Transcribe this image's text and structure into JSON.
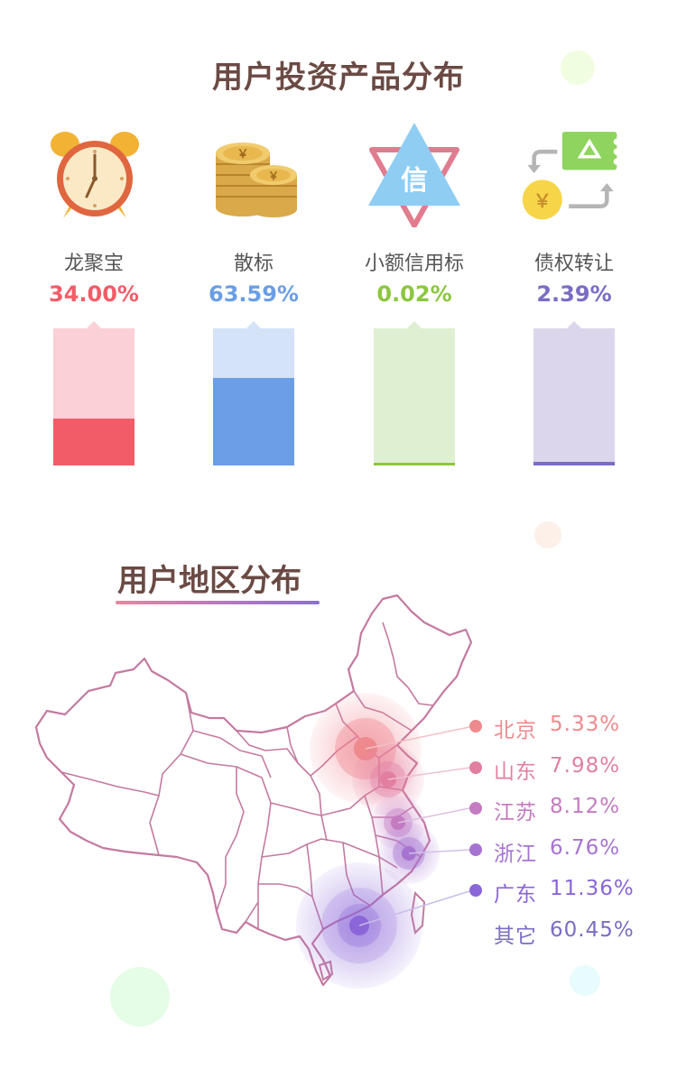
{
  "section1": {
    "title": "用户投资产品分布"
  },
  "section2": {
    "title": "用户地区分布"
  },
  "icons": {
    "clock_text": "",
    "coin_symbol": "￥",
    "credit_symbol": "信",
    "transfer_symbol": "￥"
  },
  "chart_data": [
    {
      "type": "bar",
      "categories": [
        "龙聚宝",
        "散标",
        "小额信用标",
        "债权转让"
      ],
      "values": [
        34.0,
        63.59,
        0.02,
        2.39
      ],
      "value_labels": [
        "34.00%",
        "63.59%",
        "0.02%",
        "2.39%"
      ],
      "colors": [
        "#f25c68",
        "#6a9ee6",
        "#8cc63f",
        "#7b6cc4"
      ],
      "track_colors": [
        "#fbd0d6",
        "#d4e3f7",
        "#dff0d2",
        "#dcd6ec"
      ],
      "ylim": [
        0,
        100
      ]
    },
    {
      "type": "table",
      "items": [
        {
          "name": "北京",
          "value": "5.33%",
          "color": "#ee8a8e"
        },
        {
          "name": "山东",
          "value": "7.98%",
          "color": "#e27fa0"
        },
        {
          "name": "江苏",
          "value": "8.12%",
          "color": "#c47bc0"
        },
        {
          "name": "浙江",
          "value": "6.76%",
          "color": "#a773d0"
        },
        {
          "name": "广东",
          "value": "11.36%",
          "color": "#8a66d8"
        },
        {
          "name": "其它",
          "value": "60.45%",
          "color": ""
        }
      ]
    }
  ]
}
